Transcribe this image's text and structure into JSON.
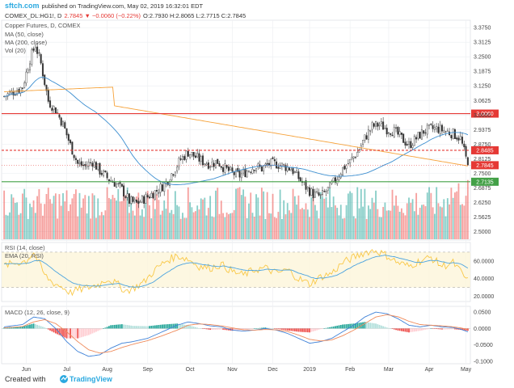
{
  "header": {
    "site": "sftch.com",
    "published_on": "published on TradingView.com, May 02, 2019 16:32:01 EDT",
    "symbol": "COMEX_DL:HG1!, D",
    "change": "2.7845 ▼ −0.0060 (−0.22%)",
    "ohlc": "O:2.7930 H:2.8065 L:2.7715 C:2.7845"
  },
  "footer": {
    "created_with": "Created with",
    "brand": "TradingView"
  },
  "colors": {
    "up": "#26a69a",
    "down": "#ef5350",
    "ma50": "#3d8fd0",
    "ma200": "#f6a23a",
    "rsi": "#f9c847",
    "rsi_ema": "#4aa3df",
    "macd": "#3f82d8",
    "signal": "#ef8a5a",
    "hline_red": "#e53935",
    "hline_green": "#43a047"
  },
  "chart_data": [
    {
      "type": "candlestick",
      "title": "Copper Futures, D, COMEX",
      "legend": [
        "MA (50, close)",
        "MA (200, close)",
        "Vol (20)"
      ],
      "ylim": [
        2.47,
        3.4
      ],
      "y_ticks": [
        "3.3750",
        "3.3125",
        "3.2500",
        "3.1875",
        "3.1250",
        "3.0625",
        "3.0000",
        "2.9375",
        "2.8750",
        "2.8125",
        "2.7500",
        "2.6875",
        "2.6250",
        "2.5625",
        "2.5000"
      ],
      "x_labels": [
        "Jun",
        "Jul",
        "Aug",
        "Sep",
        "Oct",
        "Nov",
        "Dec",
        "2019",
        "Feb",
        "Mar",
        "Apr",
        "May"
      ],
      "x_label_index": [
        12,
        34,
        56,
        78,
        101,
        124,
        146,
        166,
        188,
        209,
        231,
        251
      ],
      "anchors": [
        [
          0,
          3.08
        ],
        [
          5,
          3.1
        ],
        [
          10,
          3.12
        ],
        [
          14,
          3.24
        ],
        [
          17,
          3.3
        ],
        [
          20,
          3.22
        ],
        [
          24,
          3.06
        ],
        [
          28,
          3.02
        ],
        [
          32,
          2.96
        ],
        [
          36,
          2.87
        ],
        [
          40,
          2.79
        ],
        [
          44,
          2.78
        ],
        [
          48,
          2.8
        ],
        [
          52,
          2.76
        ],
        [
          56,
          2.73
        ],
        [
          60,
          2.71
        ],
        [
          64,
          2.68
        ],
        [
          68,
          2.63
        ],
        [
          72,
          2.62
        ],
        [
          76,
          2.64
        ],
        [
          80,
          2.66
        ],
        [
          84,
          2.68
        ],
        [
          88,
          2.71
        ],
        [
          92,
          2.76
        ],
        [
          96,
          2.81
        ],
        [
          100,
          2.84
        ],
        [
          104,
          2.82
        ],
        [
          108,
          2.8
        ],
        [
          112,
          2.79
        ],
        [
          116,
          2.8
        ],
        [
          120,
          2.77
        ],
        [
          124,
          2.75
        ],
        [
          128,
          2.74
        ],
        [
          132,
          2.76
        ],
        [
          136,
          2.78
        ],
        [
          140,
          2.77
        ],
        [
          144,
          2.79
        ],
        [
          148,
          2.79
        ],
        [
          152,
          2.78
        ],
        [
          156,
          2.77
        ],
        [
          160,
          2.73
        ],
        [
          164,
          2.69
        ],
        [
          168,
          2.66
        ],
        [
          172,
          2.65
        ],
        [
          176,
          2.68
        ],
        [
          180,
          2.72
        ],
        [
          184,
          2.77
        ],
        [
          188,
          2.8
        ],
        [
          192,
          2.84
        ],
        [
          196,
          2.9
        ],
        [
          200,
          2.95
        ],
        [
          204,
          2.96
        ],
        [
          208,
          2.94
        ],
        [
          212,
          2.93
        ],
        [
          216,
          2.9
        ],
        [
          220,
          2.87
        ],
        [
          224,
          2.9
        ],
        [
          228,
          2.93
        ],
        [
          232,
          2.94
        ],
        [
          236,
          2.94
        ],
        [
          240,
          2.93
        ],
        [
          244,
          2.92
        ],
        [
          248,
          2.9
        ],
        [
          252,
          2.7845
        ]
      ],
      "n_bars": 253,
      "last_close": 2.7845,
      "hlines": [
        {
          "value": 3.006,
          "label": "3.0060",
          "color": "#e53935",
          "style": "solid"
        },
        {
          "value": 2.8485,
          "label": "2.8485",
          "color": "#e53935",
          "style": "dashed"
        },
        {
          "value": 2.7135,
          "label": "2.7135",
          "color": "#43a047",
          "style": "solid"
        }
      ],
      "price_tag": {
        "value": 2.7845,
        "label": "2.7845",
        "color": "#e53935"
      }
    },
    {
      "type": "line",
      "title": "RSI (14, close)",
      "legend": [
        "RSI (14, close)",
        "EMA (20, RSI)"
      ],
      "ylim": [
        15,
        80
      ],
      "y_ticks": [
        "60.0000",
        "40.0000",
        "20.0000"
      ],
      "band": [
        30,
        70
      ],
      "anchors": [
        [
          0,
          55
        ],
        [
          12,
          60
        ],
        [
          16,
          70
        ],
        [
          22,
          44
        ],
        [
          26,
          36
        ],
        [
          32,
          30
        ],
        [
          36,
          24
        ],
        [
          40,
          27
        ],
        [
          46,
          30
        ],
        [
          52,
          34
        ],
        [
          56,
          40
        ],
        [
          62,
          33
        ],
        [
          66,
          26
        ],
        [
          70,
          29
        ],
        [
          76,
          36
        ],
        [
          82,
          50
        ],
        [
          88,
          60
        ],
        [
          94,
          66
        ],
        [
          100,
          62
        ],
        [
          106,
          54
        ],
        [
          112,
          52
        ],
        [
          118,
          56
        ],
        [
          124,
          48
        ],
        [
          130,
          44
        ],
        [
          136,
          50
        ],
        [
          142,
          52
        ],
        [
          148,
          46
        ],
        [
          154,
          50
        ],
        [
          160,
          40
        ],
        [
          166,
          34
        ],
        [
          172,
          42
        ],
        [
          178,
          46
        ],
        [
          184,
          58
        ],
        [
          190,
          64
        ],
        [
          196,
          70
        ],
        [
          202,
          72
        ],
        [
          208,
          66
        ],
        [
          214,
          58
        ],
        [
          220,
          54
        ],
        [
          226,
          60
        ],
        [
          232,
          64
        ],
        [
          238,
          54
        ],
        [
          244,
          58
        ],
        [
          248,
          48
        ],
        [
          252,
          37
        ]
      ],
      "last_value": 37
    },
    {
      "type": "macd",
      "title": "MACD (12, 26, close, 9)",
      "ylim": [
        -0.105,
        0.065
      ],
      "y_ticks": [
        "0.0500",
        "0.0000",
        "-0.0500",
        "-0.1000"
      ],
      "macd_anchors": [
        [
          0,
          0.005
        ],
        [
          10,
          0.012
        ],
        [
          16,
          0.035
        ],
        [
          22,
          0.03
        ],
        [
          28,
          0.0
        ],
        [
          34,
          -0.04
        ],
        [
          40,
          -0.07
        ],
        [
          46,
          -0.085
        ],
        [
          52,
          -0.08
        ],
        [
          58,
          -0.06
        ],
        [
          64,
          -0.045
        ],
        [
          70,
          -0.04
        ],
        [
          78,
          -0.03
        ],
        [
          86,
          -0.01
        ],
        [
          94,
          0.01
        ],
        [
          100,
          0.02
        ],
        [
          106,
          0.015
        ],
        [
          112,
          0.008
        ],
        [
          118,
          0.005
        ],
        [
          124,
          -0.005
        ],
        [
          130,
          -0.008
        ],
        [
          136,
          -0.005
        ],
        [
          142,
          0.0
        ],
        [
          148,
          -0.005
        ],
        [
          154,
          -0.015
        ],
        [
          160,
          -0.03
        ],
        [
          166,
          -0.045
        ],
        [
          172,
          -0.04
        ],
        [
          178,
          -0.03
        ],
        [
          184,
          -0.01
        ],
        [
          190,
          0.01
        ],
        [
          196,
          0.035
        ],
        [
          202,
          0.05
        ],
        [
          208,
          0.045
        ],
        [
          214,
          0.03
        ],
        [
          220,
          0.01
        ],
        [
          226,
          0.005
        ],
        [
          232,
          0.01
        ],
        [
          238,
          0.005
        ],
        [
          244,
          0.003
        ],
        [
          248,
          -0.002
        ],
        [
          252,
          -0.01
        ]
      ],
      "signal_anchors": [
        [
          0,
          0.002
        ],
        [
          10,
          0.006
        ],
        [
          16,
          0.02
        ],
        [
          22,
          0.027
        ],
        [
          28,
          0.015
        ],
        [
          34,
          -0.01
        ],
        [
          40,
          -0.04
        ],
        [
          46,
          -0.065
        ],
        [
          52,
          -0.075
        ],
        [
          58,
          -0.07
        ],
        [
          64,
          -0.058
        ],
        [
          70,
          -0.048
        ],
        [
          78,
          -0.037
        ],
        [
          86,
          -0.022
        ],
        [
          94,
          -0.005
        ],
        [
          100,
          0.01
        ],
        [
          106,
          0.014
        ],
        [
          112,
          0.012
        ],
        [
          118,
          0.008
        ],
        [
          124,
          0.002
        ],
        [
          130,
          -0.004
        ],
        [
          136,
          -0.005
        ],
        [
          142,
          -0.003
        ],
        [
          148,
          -0.004
        ],
        [
          154,
          -0.009
        ],
        [
          160,
          -0.02
        ],
        [
          166,
          -0.033
        ],
        [
          172,
          -0.038
        ],
        [
          178,
          -0.035
        ],
        [
          184,
          -0.022
        ],
        [
          190,
          -0.005
        ],
        [
          196,
          0.015
        ],
        [
          202,
          0.035
        ],
        [
          208,
          0.042
        ],
        [
          214,
          0.036
        ],
        [
          220,
          0.022
        ],
        [
          226,
          0.012
        ],
        [
          232,
          0.01
        ],
        [
          238,
          0.008
        ],
        [
          244,
          0.005
        ],
        [
          248,
          0.002
        ],
        [
          252,
          -0.003
        ]
      ]
    }
  ]
}
